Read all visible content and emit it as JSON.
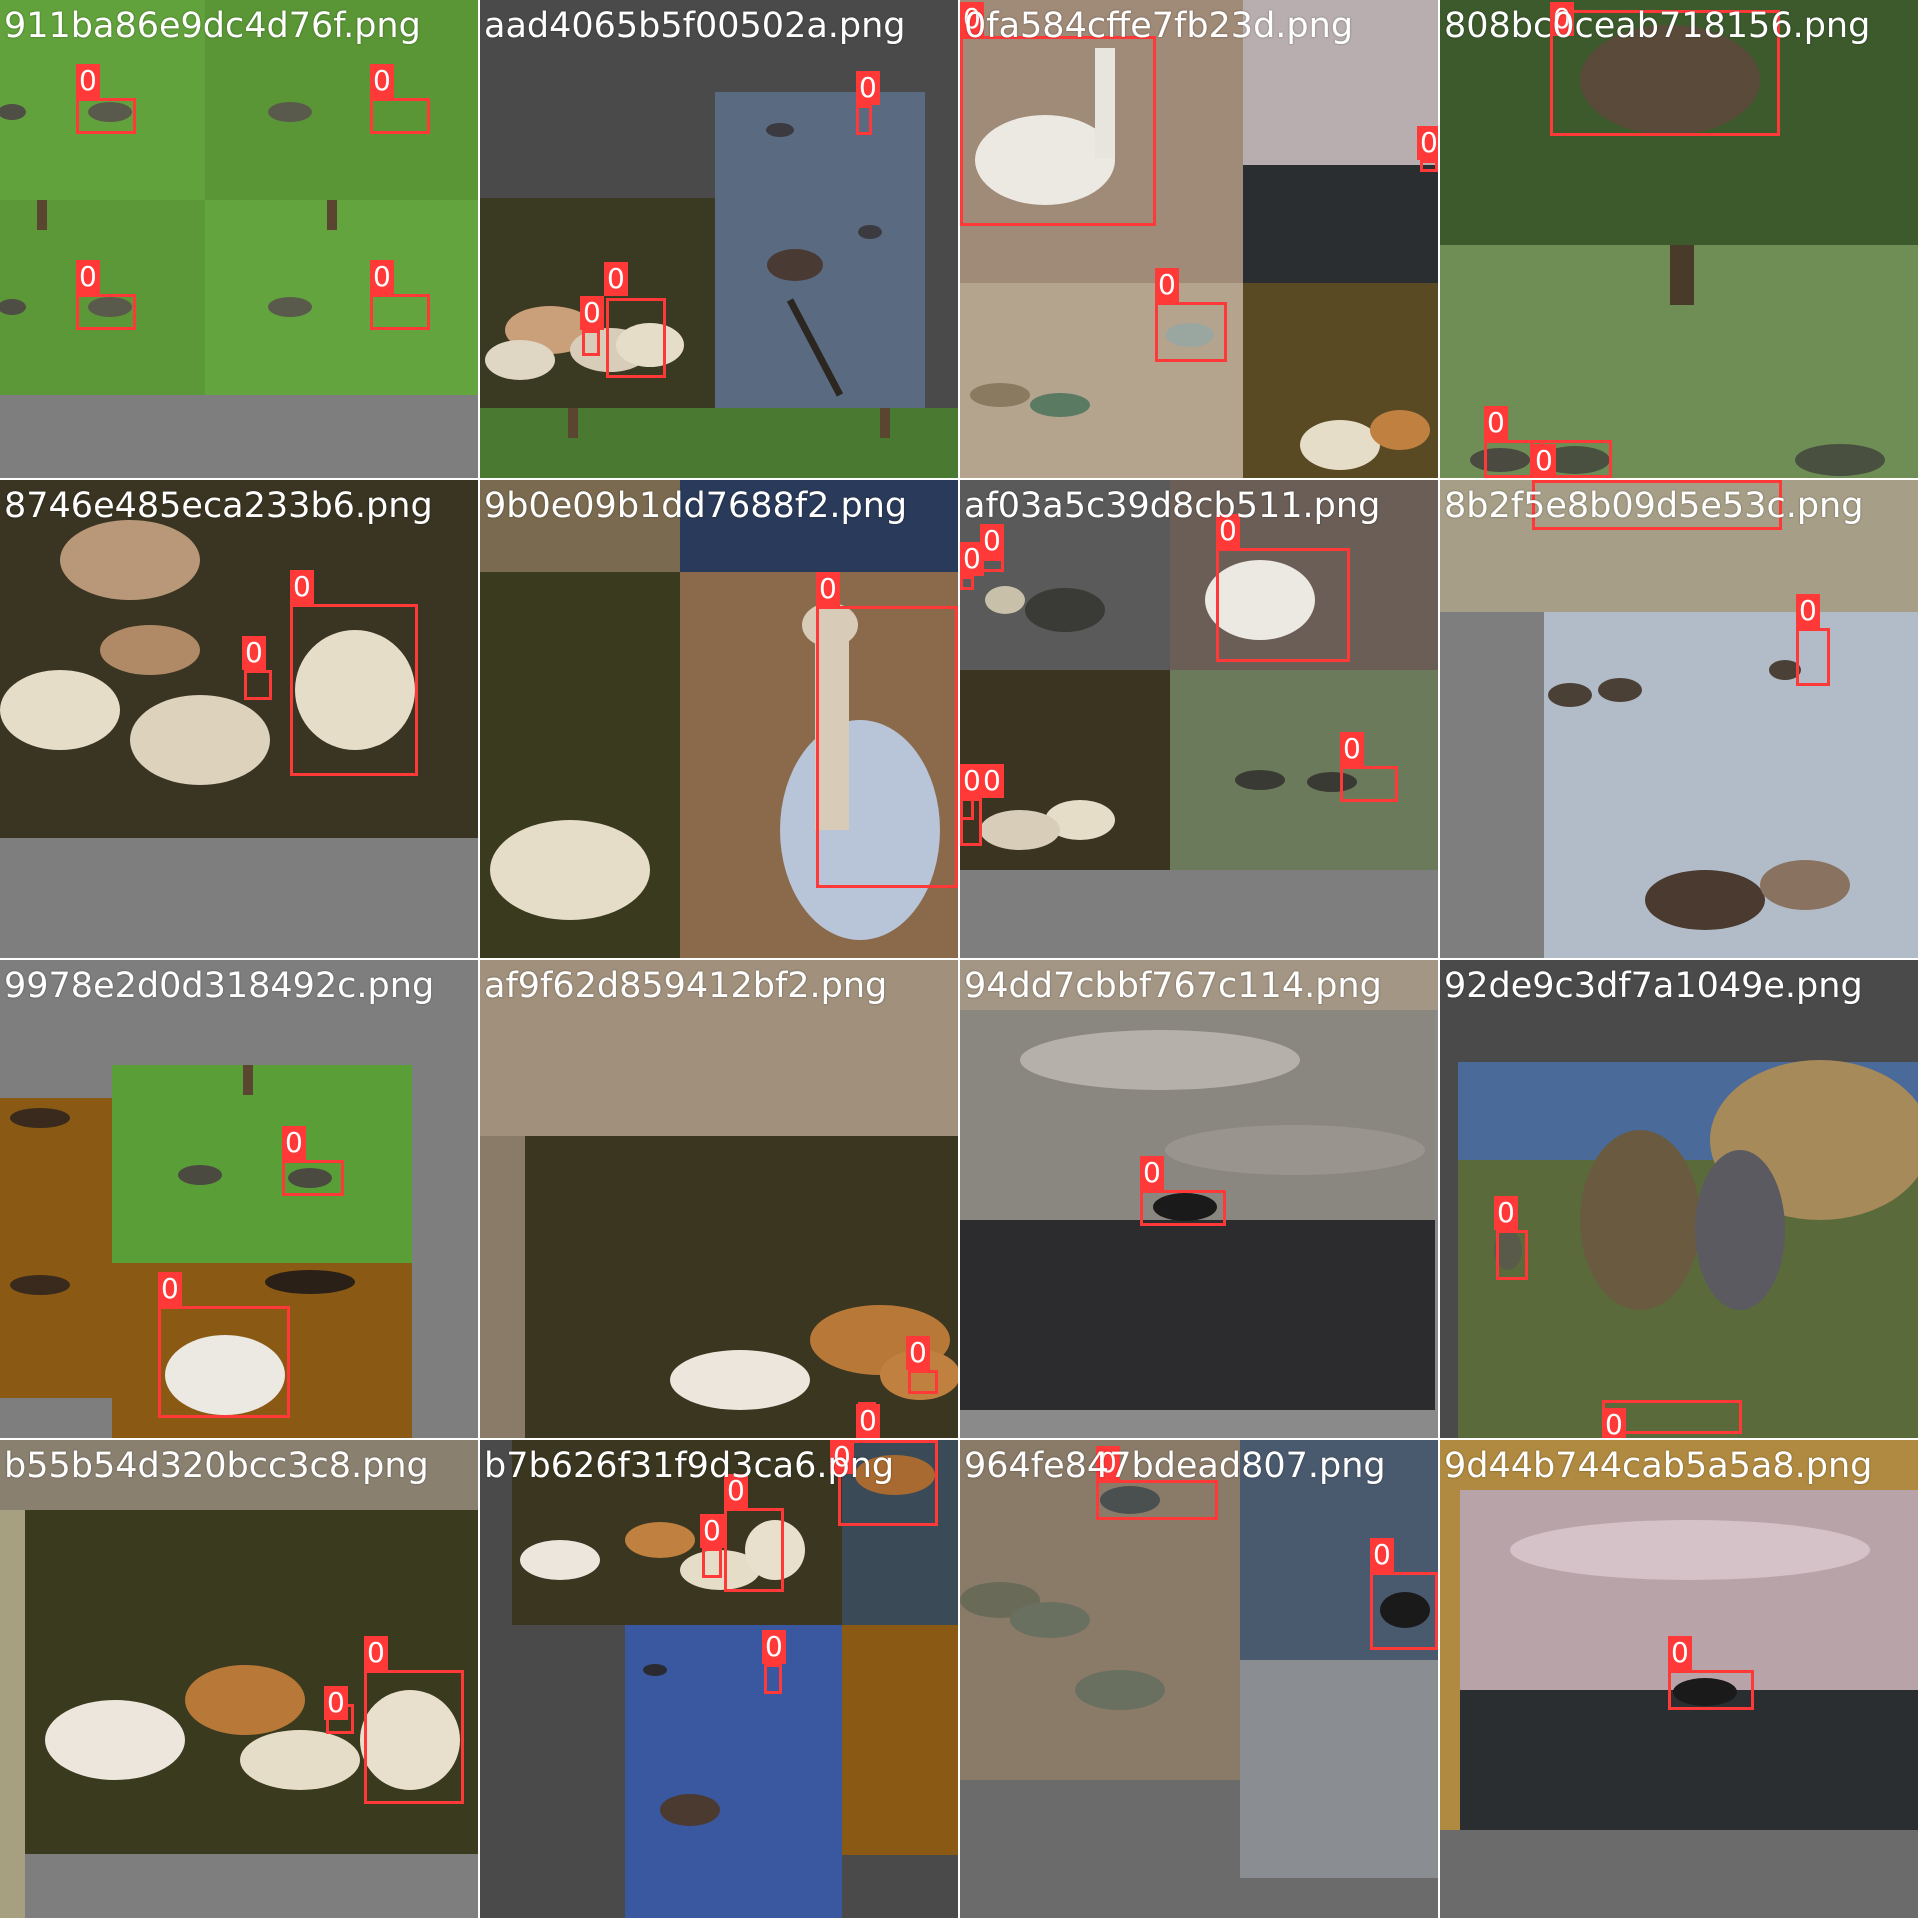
{
  "mosaic": {
    "tiles": [
      {
        "filename": "911ba86e9dc4d76f.png",
        "labels": [
          "0",
          "0",
          "0",
          "0"
        ]
      },
      {
        "filename": "aad4065b5f00502a.png",
        "labels": [
          "0",
          "0",
          "0"
        ]
      },
      {
        "filename": "0fa584cffe7fb23d.png",
        "labels": [
          "0",
          "0",
          "0"
        ]
      },
      {
        "filename": "808bc0ceab718156.png",
        "labels": [
          "0",
          "0",
          "0"
        ]
      },
      {
        "filename": "8746e485eca233b6.png",
        "labels": [
          "0",
          "0"
        ]
      },
      {
        "filename": "9b0e09b1dd7688f2.png",
        "labels": [
          "0"
        ]
      },
      {
        "filename": "af03a5c39d8cb511.png",
        "labels": [
          "0",
          "0",
          "0",
          "0",
          "0",
          "0"
        ]
      },
      {
        "filename": "8b2f5e8b09d5e53c.png",
        "labels": [
          "0"
        ]
      },
      {
        "filename": "9978e2d0d318492c.png",
        "labels": [
          "0",
          "0"
        ]
      },
      {
        "filename": "af9f62d859412bf2.png",
        "labels": [
          "0",
          "0"
        ]
      },
      {
        "filename": "94dd7cbbf767c114.png",
        "labels": [
          "0"
        ]
      },
      {
        "filename": "92de9c3df7a1049e.png",
        "labels": [
          "0",
          "0"
        ]
      },
      {
        "filename": "b55b54d320bcc3c8.png",
        "labels": [
          "0",
          "0"
        ]
      },
      {
        "filename": "b7b626f31f9d3ca6.png",
        "labels": [
          "0",
          "0",
          "0",
          "0"
        ]
      },
      {
        "filename": "964fe847bdead807.png",
        "labels": [
          "0",
          "0"
        ]
      },
      {
        "filename": "9d44b744cab5a5a8.png",
        "labels": [
          "0"
        ]
      }
    ]
  }
}
